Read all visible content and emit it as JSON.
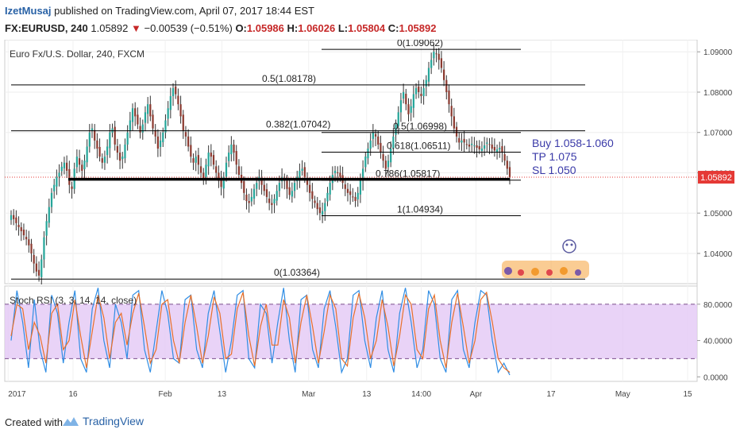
{
  "header": {
    "author": "IzetMusaj",
    "published": " published on TradingView.com, April 07, 2017 18:44 EST",
    "symbol": "FX:EURUSD, 240",
    "last": "1.05892",
    "change_arrow": "▼",
    "change": "−0.00539 (−0.51%)",
    "o_label": "O:",
    "o": "1.05986",
    "h_label": "H:",
    "h": "1.06026",
    "l_label": "L:",
    "l": "1.05804",
    "c_label": "C:",
    "c": "1.05892"
  },
  "colors": {
    "up": "#26a69a",
    "down": "#8b3a30",
    "wick": "#333333",
    "level_line": "#000000",
    "support_line": "#000000",
    "price_tag": "#e53935",
    "annotation": "#3a3aa8",
    "stoch_k": "#2f8de4",
    "stoch_d": "#e8702a",
    "stoch_band": "#e3c8f5",
    "brand": "#2962a6"
  },
  "chart_data": [
    {
      "type": "candlestick",
      "title": "Euro Fx/U.S. Dollar, 240, FXCM",
      "ylim": [
        1.0325,
        1.093
      ],
      "y_ticks": [
        "1.09000",
        "1.08000",
        "1.07000",
        "1.06000",
        "1.05000",
        "1.04000"
      ],
      "last_price_label": "1.05892",
      "series": [
        {
          "name": "EURUSD",
          "close": [
            1.0495,
            1.0485,
            1.0475,
            1.0465,
            1.0455,
            1.0445,
            1.0435,
            1.042,
            1.04,
            1.0375,
            1.0355,
            1.0345,
            1.0385,
            1.044,
            1.048,
            1.0515,
            1.055,
            1.057,
            1.059,
            1.06,
            1.0615,
            1.0625,
            1.0605,
            1.057,
            1.056,
            1.061,
            1.064,
            1.062,
            1.0605,
            1.063,
            1.0665,
            1.07,
            1.071,
            1.068,
            1.066,
            1.064,
            1.0625,
            1.064,
            1.0665,
            1.07,
            1.071,
            1.067,
            1.065,
            1.063,
            1.064,
            1.067,
            1.07,
            1.073,
            1.076,
            1.074,
            1.072,
            1.07,
            1.072,
            1.075,
            1.077,
            1.074,
            1.071,
            1.069,
            1.066,
            1.068,
            1.07,
            1.073,
            1.076,
            1.079,
            1.081,
            1.0795,
            1.077,
            1.074,
            1.0705,
            1.069,
            1.0665,
            1.064,
            1.0625,
            1.064,
            1.062,
            1.06,
            1.0585,
            1.062,
            1.065,
            1.064,
            1.062,
            1.06,
            1.058,
            1.0565,
            1.059,
            1.0625,
            1.065,
            1.067,
            1.065,
            1.062,
            1.0595,
            1.0575,
            1.055,
            1.053,
            1.0525,
            1.054,
            1.056,
            1.0575,
            1.059,
            1.057,
            1.0555,
            1.054,
            1.0525,
            1.052,
            1.0535,
            1.0555,
            1.0575,
            1.059,
            1.058,
            1.056,
            1.0545,
            1.0555,
            1.0575,
            1.059,
            1.0605,
            1.061,
            1.059,
            1.057,
            1.055,
            1.0535,
            1.0525,
            1.051,
            1.05,
            1.0505,
            1.0525,
            1.055,
            1.0575,
            1.0595,
            1.0605,
            1.06,
            1.059,
            1.0575,
            1.056,
            1.055,
            1.0545,
            1.054,
            1.053,
            1.055,
            1.058,
            1.061,
            1.064,
            1.066,
            1.068,
            1.07,
            1.069,
            1.067,
            1.065,
            1.063,
            1.061,
            1.063,
            1.066,
            1.069,
            1.072,
            1.075,
            1.078,
            1.08,
            1.077,
            1.0745,
            1.0765,
            1.0795,
            1.081,
            1.08,
            1.079,
            1.081,
            1.083,
            1.086,
            1.088,
            1.09,
            1.0895,
            1.088,
            1.086,
            1.083,
            1.08,
            1.077,
            1.074,
            1.071,
            1.069,
            1.0675,
            1.068,
            1.0675,
            1.067,
            1.0665,
            1.0672,
            1.0668,
            1.0662,
            1.0658,
            1.066,
            1.0668,
            1.0675,
            1.067,
            1.066,
            1.0655,
            1.0658,
            1.0662,
            1.065,
            1.063,
            1.061,
            1.0589
          ]
        }
      ],
      "levels": [
        {
          "label": "0(1.09062)",
          "value": 1.09062
        },
        {
          "label": "0.5(1.08178)",
          "value": 1.08178
        },
        {
          "label": "0.382(1.07042)",
          "value": 1.07042
        },
        {
          "label": "0.5(1.06998)",
          "value": 1.06998
        },
        {
          "label": "0.618(1.06511)",
          "value": 1.06511
        },
        {
          "label": "0.786(1.05817)",
          "value": 1.05817
        },
        {
          "label": "1(1.04934)",
          "value": 1.04934
        },
        {
          "label": "0(1.03364)",
          "value": 1.03364
        }
      ],
      "support_value": 1.0584,
      "annotations": [
        "Buy 1.058-1.060",
        "TP 1.075",
        "SL 1.050"
      ]
    },
    {
      "type": "line",
      "title": "Stoch RSI (3, 3, 14, 14, close)",
      "ylim": [
        -5,
        100
      ],
      "y_ticks": [
        "80.0000",
        "40.0000",
        "0.0000"
      ],
      "band": [
        20,
        80
      ],
      "series": [
        {
          "name": "K",
          "values": [
            40,
            95,
            60,
            10,
            85,
            30,
            5,
            90,
            70,
            15,
            60,
            95,
            20,
            5,
            75,
            98,
            40,
            10,
            80,
            60,
            20,
            90,
            95,
            30,
            5,
            50,
            95,
            70,
            20,
            15,
            85,
            90,
            30,
            10,
            70,
            95,
            50,
            5,
            40,
            90,
            95,
            20,
            10,
            80,
            70,
            15,
            60,
            98,
            40,
            5,
            85,
            90,
            30,
            10,
            75,
            95,
            55,
            5,
            20,
            90,
            95,
            40,
            10,
            65,
            95,
            30,
            5,
            70,
            98,
            60,
            10,
            30,
            95,
            80,
            20,
            5,
            85,
            95,
            30,
            10,
            60,
            95,
            90,
            40,
            5,
            15,
            2
          ]
        },
        {
          "name": "D",
          "values": [
            45,
            80,
            75,
            30,
            60,
            45,
            15,
            70,
            80,
            30,
            40,
            85,
            45,
            10,
            50,
            90,
            65,
            20,
            60,
            70,
            35,
            70,
            92,
            55,
            15,
            30,
            80,
            85,
            40,
            15,
            60,
            90,
            55,
            15,
            45,
            88,
            70,
            20,
            25,
            75,
            93,
            45,
            12,
            55,
            80,
            35,
            35,
            85,
            65,
            15,
            60,
            90,
            55,
            15,
            50,
            90,
            75,
            20,
            12,
            65,
            92,
            65,
            20,
            40,
            85,
            55,
            12,
            45,
            90,
            80,
            30,
            20,
            75,
            90,
            40,
            10,
            60,
            92,
            55,
            15,
            40,
            85,
            93,
            60,
            20,
            10,
            5
          ]
        }
      ]
    }
  ],
  "x_axis": {
    "labels": [
      {
        "text": "2017",
        "pos": 0.005
      },
      {
        "text": "16",
        "pos": 0.1
      },
      {
        "text": "Feb",
        "pos": 0.235
      },
      {
        "text": "13",
        "pos": 0.318
      },
      {
        "text": "Mar",
        "pos": 0.445
      },
      {
        "text": "13",
        "pos": 0.53
      },
      {
        "text": "14:00",
        "pos": 0.61
      },
      {
        "text": "Apr",
        "pos": 0.69
      },
      {
        "text": "17",
        "pos": 0.8
      },
      {
        "text": "May",
        "pos": 0.905
      },
      {
        "text": "15",
        "pos": 1.0
      }
    ]
  },
  "footer": {
    "created": "Created with",
    "brand": "TradingView"
  }
}
